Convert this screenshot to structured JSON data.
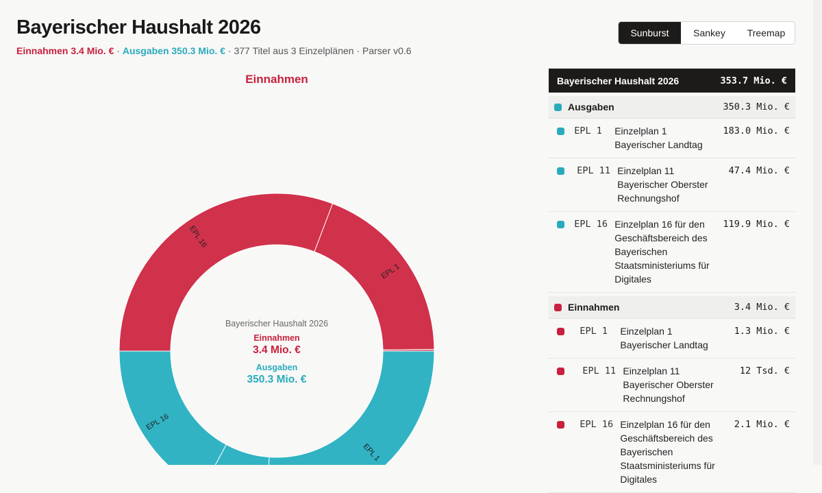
{
  "header": {
    "title": "Bayerischer Haushalt 2026",
    "subtitle": {
      "income": "Einnahmen 3.4 Mio. €",
      "separator": "·",
      "expense": "Ausgaben 350.3 Mio. €",
      "info": "· 377 Titel aus 3 Einzelplänen · Parser v0.6"
    }
  },
  "tabs": [
    {
      "label": "Sunburst",
      "active": true
    },
    {
      "label": "Sankey",
      "active": false
    },
    {
      "label": "Treemap",
      "active": false
    }
  ],
  "chart": {
    "heading": "Einnahmen",
    "center": {
      "title": "Bayerischer Haushalt 2026",
      "income_label": "Einnahmen",
      "income_value": "3.4 Mio. €",
      "expense_label": "Ausgaben",
      "expense_value": "350.3 Mio. €"
    }
  },
  "table": {
    "title": "Bayerischer Haushalt 2026",
    "total": "353.7 Mio. €",
    "groups": [
      {
        "name": "Ausgaben",
        "color": "#2aabbd",
        "ring_color": "#31b3c3",
        "amount": {
          "value": 350.3,
          "label": "350.3 Mio. €"
        },
        "rows": [
          {
            "code": "EPL 1",
            "name": "Einzelplan 1 Bayerischer Landtag",
            "amount": {
              "value": 183.0,
              "label": "183.0 Mio. €"
            }
          },
          {
            "code": "EPL 11",
            "name": "Einzelplan 11 Bayerischer Oberster Rechnungshof",
            "amount": {
              "value": 47.4,
              "label": "47.4 Mio. €"
            }
          },
          {
            "code": "EPL 16",
            "name": "Einzelplan 16 für den Geschäftsbereich des Bayerischen Staatsministeriums für Digitales",
            "amount": {
              "value": 119.9,
              "label": "119.9 Mio. €"
            }
          }
        ]
      },
      {
        "name": "Einnahmen",
        "color": "#c8203d",
        "ring_color": "#d0314b",
        "amount": {
          "value": 3.4,
          "label": "3.4 Mio. €"
        },
        "rows": [
          {
            "code": "EPL 1",
            "name": "Einzelplan 1 Bayerischer Landtag",
            "amount": {
              "value": 1.3,
              "label": "1.3 Mio. €"
            }
          },
          {
            "code": "EPL 11",
            "name": "Einzelplan 11 Bayerischer Oberster Rechnungshof",
            "amount": {
              "value": 0.012,
              "label": "12 Tsd. €"
            }
          },
          {
            "code": "EPL 16",
            "name": "Einzelplan 16 für den Geschäftsbereich des Bayerischen Staatsministeriums für Digitales",
            "amount": {
              "value": 2.1,
              "label": "2.1 Mio. €"
            }
          }
        ]
      }
    ]
  }
}
